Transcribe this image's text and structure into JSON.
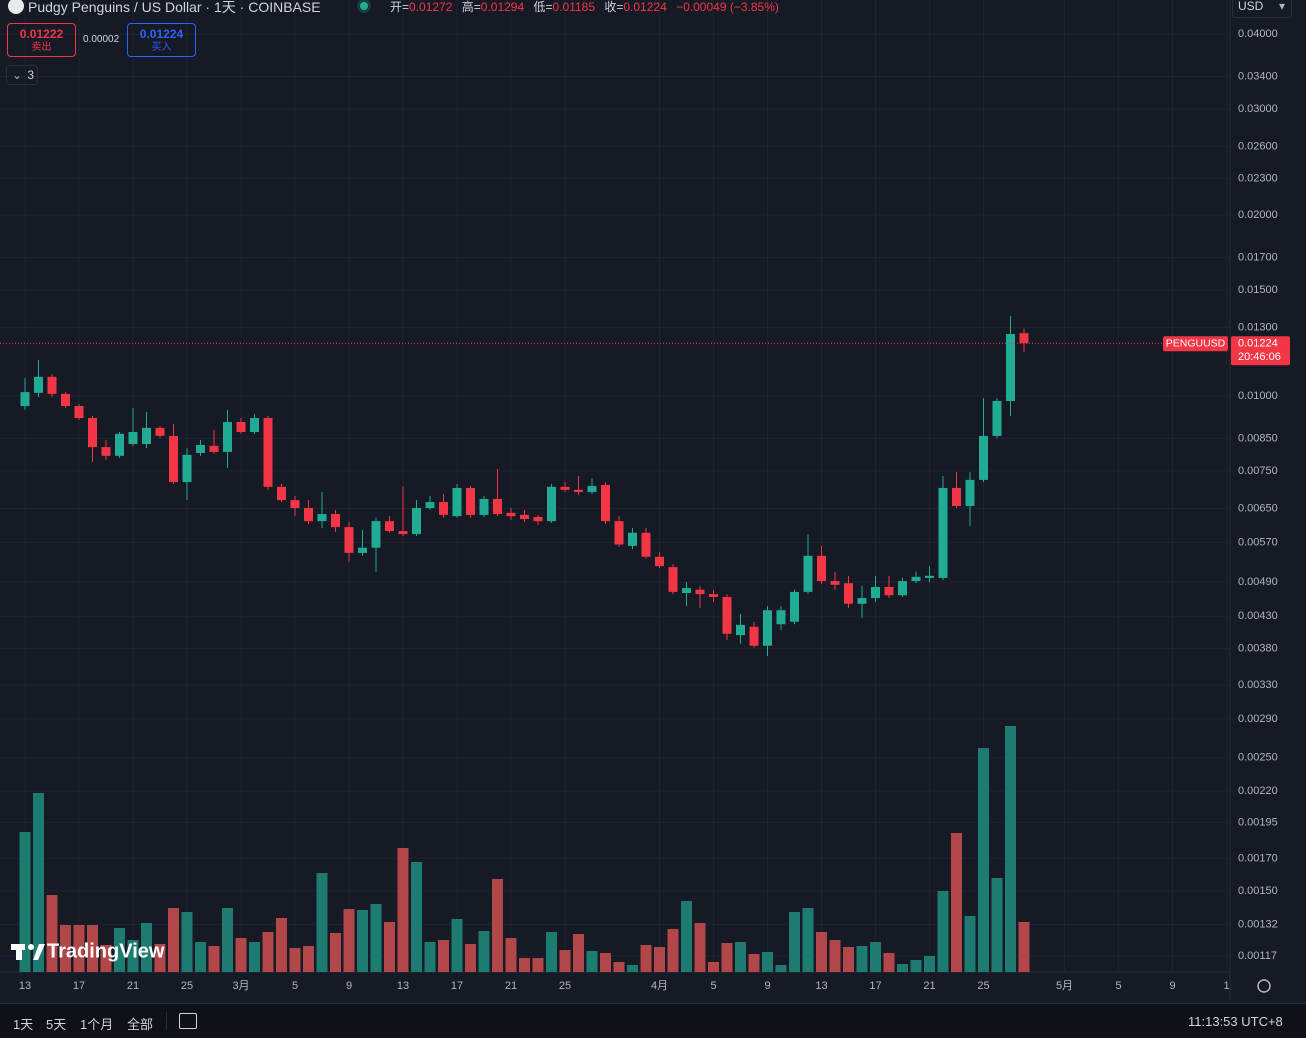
{
  "header": {
    "symbol": "Pudgy Penguins / US Dollar · 1天 · COINBASE",
    "ohlc": [
      {
        "key": "开=",
        "value": "0.01272"
      },
      {
        "key": "高=",
        "value": "0.01294"
      },
      {
        "key": "低=",
        "value": "0.01185"
      },
      {
        "key": "收=",
        "value": "0.01224"
      }
    ],
    "change": "−0.00049 (−3.85%)"
  },
  "trade": {
    "sell_price": "0.01222",
    "sell_label": "卖出",
    "spread": "0.00002",
    "buy_price": "0.01224",
    "buy_label": "买入"
  },
  "indicators_count": "3",
  "currency": "USD",
  "price_tag": {
    "symbol": "PENGUUSD",
    "countdown": "20:46:06"
  },
  "watermark": "TradingView",
  "toolbar": {
    "ranges": [
      "1天",
      "5天",
      "1个月",
      "全部"
    ],
    "clock": "11:13:53 UTC+8"
  },
  "chart_data": {
    "type": "candlestick",
    "log_scale": true,
    "grid": true,
    "up_color": "#22ab94",
    "down_color": "#f23645",
    "volume_up_color": "#1e7b72",
    "volume_down_color": "#b2474a",
    "categories": [
      "13",
      null,
      null,
      null,
      "17",
      null,
      null,
      null,
      "21",
      null,
      null,
      null,
      "25",
      null,
      null,
      null,
      "3月",
      null,
      null,
      null,
      "5",
      null,
      null,
      null,
      "9",
      null,
      null,
      null,
      "13",
      null,
      null,
      null,
      "17",
      null,
      null,
      null,
      "21",
      null,
      null,
      null,
      "25",
      null,
      null,
      null,
      null,
      null,
      null,
      "4月",
      null,
      null,
      null,
      "5",
      null,
      null,
      null,
      "9",
      null,
      null,
      null,
      "13",
      null,
      null,
      null,
      "17",
      null,
      null,
      null,
      "21",
      null,
      null,
      null,
      "25",
      null,
      null,
      null,
      null,
      null,
      "5月",
      null,
      null,
      null,
      "5",
      null,
      null,
      null,
      "9",
      null,
      null,
      null,
      "1"
    ],
    "open": [
      0.00962,
      0.01012,
      0.01076,
      0.01008,
      0.00962,
      0.00919,
      0.00822,
      0.00795,
      0.00832,
      0.00832,
      0.00885,
      0.00858,
      0.00719,
      0.00804,
      0.00826,
      0.00807,
      0.00905,
      0.00871,
      0.00919,
      0.00706,
      0.00671,
      0.00651,
      0.00619,
      0.00636,
      0.00605,
      0.00548,
      0.00559,
      0.00619,
      0.00596,
      0.00589,
      0.00651,
      0.00666,
      0.00631,
      0.00703,
      0.00634,
      0.00674,
      0.00639,
      0.00634,
      0.00629,
      0.00619,
      0.00706,
      0.00698,
      0.00692,
      0.00711,
      0.00619,
      0.00563,
      0.00592,
      0.0054,
      0.00519,
      0.0047,
      0.00476,
      0.00468,
      0.00463,
      0.004,
      0.00413,
      0.00384,
      0.00417,
      0.00421,
      0.00472,
      0.00542,
      0.00492,
      0.00488,
      0.00451,
      0.00461,
      0.00481,
      0.00466,
      0.00492,
      0.00498,
      0.00498,
      0.00703,
      0.00656,
      0.00725,
      0.00858,
      0.00981,
      0.01272,
      null,
      null,
      null,
      null,
      null,
      null,
      null,
      null,
      null,
      null,
      null,
      null,
      null,
      null,
      null
    ],
    "high": [
      0.01071,
      0.01148,
      0.01088,
      0.01015,
      0.0097,
      0.00926,
      0.00845,
      0.00871,
      0.00955,
      0.00941,
      0.00891,
      0.00898,
      0.00819,
      0.00845,
      0.00878,
      0.00948,
      0.00919,
      0.00933,
      0.00926,
      0.00714,
      0.00682,
      0.00671,
      0.00692,
      0.00646,
      0.00617,
      0.00598,
      0.00627,
      0.00631,
      0.00708,
      0.00671,
      0.00682,
      0.00687,
      0.00714,
      0.00708,
      0.00682,
      0.00756,
      0.00651,
      0.00646,
      0.00634,
      0.00714,
      0.00719,
      0.00736,
      0.0073,
      0.00719,
      0.00631,
      0.00603,
      0.00603,
      0.0055,
      0.00525,
      0.0049,
      0.00483,
      0.00476,
      0.00468,
      0.00434,
      0.00421,
      0.00447,
      0.00447,
      0.00476,
      0.00589,
      0.00563,
      0.0051,
      0.00502,
      0.00483,
      0.00502,
      0.00502,
      0.00498,
      0.0051,
      0.00521,
      0.00736,
      0.00747,
      0.00747,
      0.00992,
      0.00992,
      0.01359,
      0.01294,
      null,
      null,
      null,
      null,
      null,
      null,
      null,
      null,
      null,
      null,
      null,
      null,
      null,
      null,
      null
    ],
    "low": [
      0.00948,
      0.00996,
      0.00996,
      0.00955,
      0.00912,
      0.00777,
      0.00783,
      0.00789,
      0.00826,
      0.00819,
      0.00851,
      0.00714,
      0.00671,
      0.00795,
      0.00801,
      0.00759,
      0.00865,
      0.00865,
      0.00698,
      0.00666,
      0.00631,
      0.00612,
      0.00603,
      0.00594,
      0.00529,
      0.00542,
      0.0051,
      0.00592,
      0.00585,
      0.00585,
      0.00646,
      0.00627,
      0.00627,
      0.00627,
      0.00629,
      0.00631,
      0.00622,
      0.00617,
      0.0061,
      0.00615,
      0.00692,
      0.00684,
      0.00687,
      0.00612,
      0.00561,
      0.00556,
      0.00536,
      0.00517,
      0.00468,
      0.00447,
      0.00444,
      0.00454,
      0.00393,
      0.00387,
      0.00381,
      0.00369,
      0.00408,
      0.00417,
      0.00468,
      0.00487,
      0.00476,
      0.00444,
      0.00427,
      0.00454,
      0.00461,
      0.00463,
      0.00488,
      0.0049,
      0.00494,
      0.00651,
      0.00608,
      0.00719,
      0.00851,
      0.00926,
      0.01185,
      null,
      null,
      null,
      null,
      null,
      null,
      null,
      null,
      null,
      null,
      null,
      null,
      null,
      null,
      null
    ],
    "close": [
      0.01015,
      0.01076,
      0.01008,
      0.00962,
      0.00919,
      0.00822,
      0.00795,
      0.00865,
      0.00871,
      0.00885,
      0.00858,
      0.00719,
      0.00798,
      0.00829,
      0.00807,
      0.00905,
      0.00871,
      0.00919,
      0.00706,
      0.00671,
      0.00651,
      0.00619,
      0.00636,
      0.00605,
      0.00548,
      0.00559,
      0.00619,
      0.00596,
      0.00589,
      0.00651,
      0.00666,
      0.00634,
      0.00703,
      0.00634,
      0.00674,
      0.00636,
      0.00631,
      0.00624,
      0.00619,
      0.00706,
      0.00698,
      0.00692,
      0.00708,
      0.00619,
      0.00566,
      0.00592,
      0.0054,
      0.00521,
      0.00472,
      0.00479,
      0.00468,
      0.00463,
      0.00402,
      0.00416,
      0.00384,
      0.0044,
      0.0044,
      0.00472,
      0.00542,
      0.00492,
      0.00485,
      0.00451,
      0.00461,
      0.00481,
      0.00466,
      0.00492,
      0.005,
      0.00502,
      0.00703,
      0.00656,
      0.00725,
      0.00858,
      0.00981,
      0.01268,
      0.01224,
      null,
      null,
      null,
      null,
      null,
      null,
      null,
      null,
      null,
      null,
      null,
      null,
      null,
      null,
      null
    ],
    "volume": [
      140,
      179,
      77,
      47,
      47,
      47,
      27,
      44,
      32,
      49,
      28,
      64,
      60,
      30,
      26,
      64,
      34,
      30,
      40,
      54,
      24,
      26,
      99,
      39,
      63,
      62,
      68,
      50,
      124,
      110,
      30,
      32,
      53,
      28,
      41,
      93,
      34,
      14,
      14,
      40,
      22,
      38,
      21,
      19,
      10,
      7,
      27,
      25,
      43,
      71,
      49,
      10,
      29,
      30,
      18,
      20,
      7,
      60,
      64,
      40,
      32,
      25,
      26,
      30,
      19,
      8,
      12,
      16,
      81,
      139,
      56,
      224,
      94,
      246,
      50,
      null,
      null,
      null,
      null,
      null,
      null,
      null,
      null,
      null,
      null,
      null,
      null,
      null,
      null,
      null
    ],
    "ylim": [
      0.0011,
      0.0456
    ],
    "yticks": [
      {
        "value": 0.04,
        "label": "0.04000"
      },
      {
        "value": 0.034,
        "label": "0.03400"
      },
      {
        "value": 0.03,
        "label": "0.03000"
      },
      {
        "value": 0.026,
        "label": "0.02600"
      },
      {
        "value": 0.023,
        "label": "0.02300"
      },
      {
        "value": 0.02,
        "label": "0.02000"
      },
      {
        "value": 0.017,
        "label": "0.01700"
      },
      {
        "value": 0.015,
        "label": "0.01500"
      },
      {
        "value": 0.013,
        "label": "0.01300"
      },
      {
        "value": 0.01,
        "label": "0.01000"
      },
      {
        "value": 0.0085,
        "label": "0.00850"
      },
      {
        "value": 0.0075,
        "label": "0.00750"
      },
      {
        "value": 0.0065,
        "label": "0.00650"
      },
      {
        "value": 0.0057,
        "label": "0.00570"
      },
      {
        "value": 0.0049,
        "label": "0.00490"
      },
      {
        "value": 0.0043,
        "label": "0.00430"
      },
      {
        "value": 0.0038,
        "label": "0.00380"
      },
      {
        "value": 0.0033,
        "label": "0.00330"
      },
      {
        "value": 0.0029,
        "label": "0.00290"
      },
      {
        "value": 0.0025,
        "label": "0.00250"
      },
      {
        "value": 0.0022,
        "label": "0.00220"
      },
      {
        "value": 0.00195,
        "label": "0.00195"
      },
      {
        "value": 0.0017,
        "label": "0.00170"
      },
      {
        "value": 0.0015,
        "label": "0.00150"
      },
      {
        "value": 0.00132,
        "label": "0.00132"
      },
      {
        "value": 0.00117,
        "label": "0.00117"
      }
    ]
  }
}
